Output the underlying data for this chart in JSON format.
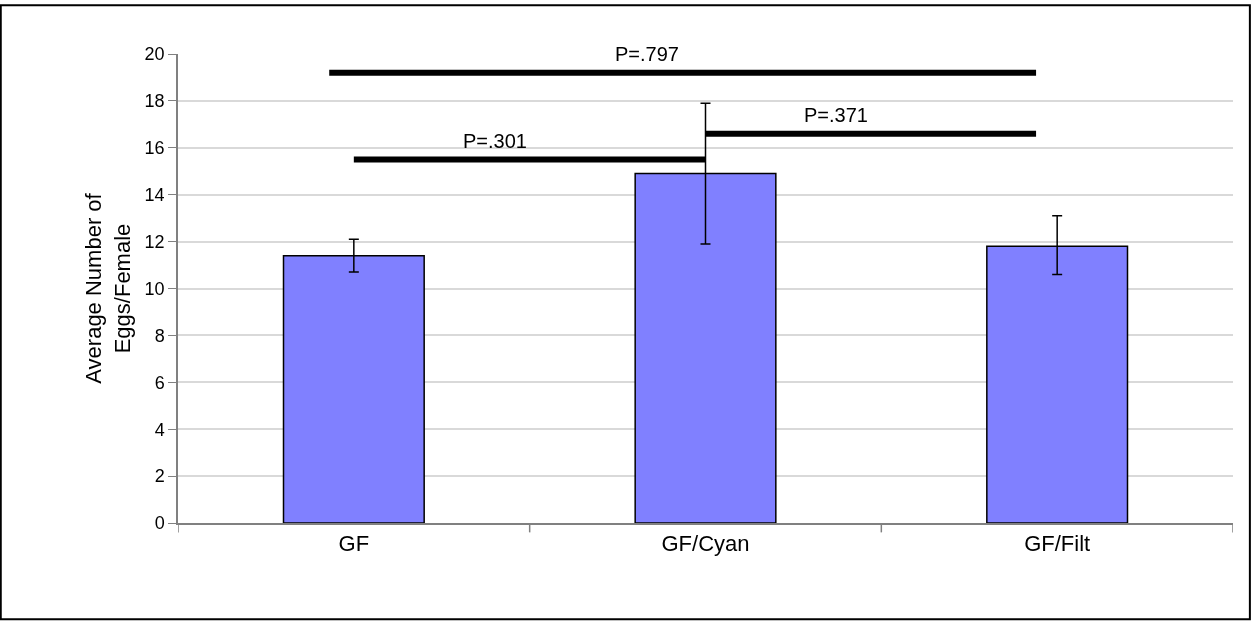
{
  "chart_data": {
    "type": "bar",
    "categories": [
      "GF",
      "GF/Cyan",
      "GF/Filt"
    ],
    "values": [
      11.4,
      14.9,
      11.8
    ],
    "errors": [
      [
        10.7,
        12.1
      ],
      [
        11.9,
        17.9
      ],
      [
        10.6,
        13.1
      ]
    ],
    "color": "#8080ff",
    "ylabel": "Average Number of\nEggs/Female",
    "ylim": [
      0,
      20
    ],
    "yticks": [
      0,
      2,
      4,
      6,
      8,
      10,
      12,
      14,
      16,
      18,
      20
    ],
    "grid": "y",
    "annotations": [
      "P=.797",
      "P=.301",
      "P=.371"
    ]
  }
}
